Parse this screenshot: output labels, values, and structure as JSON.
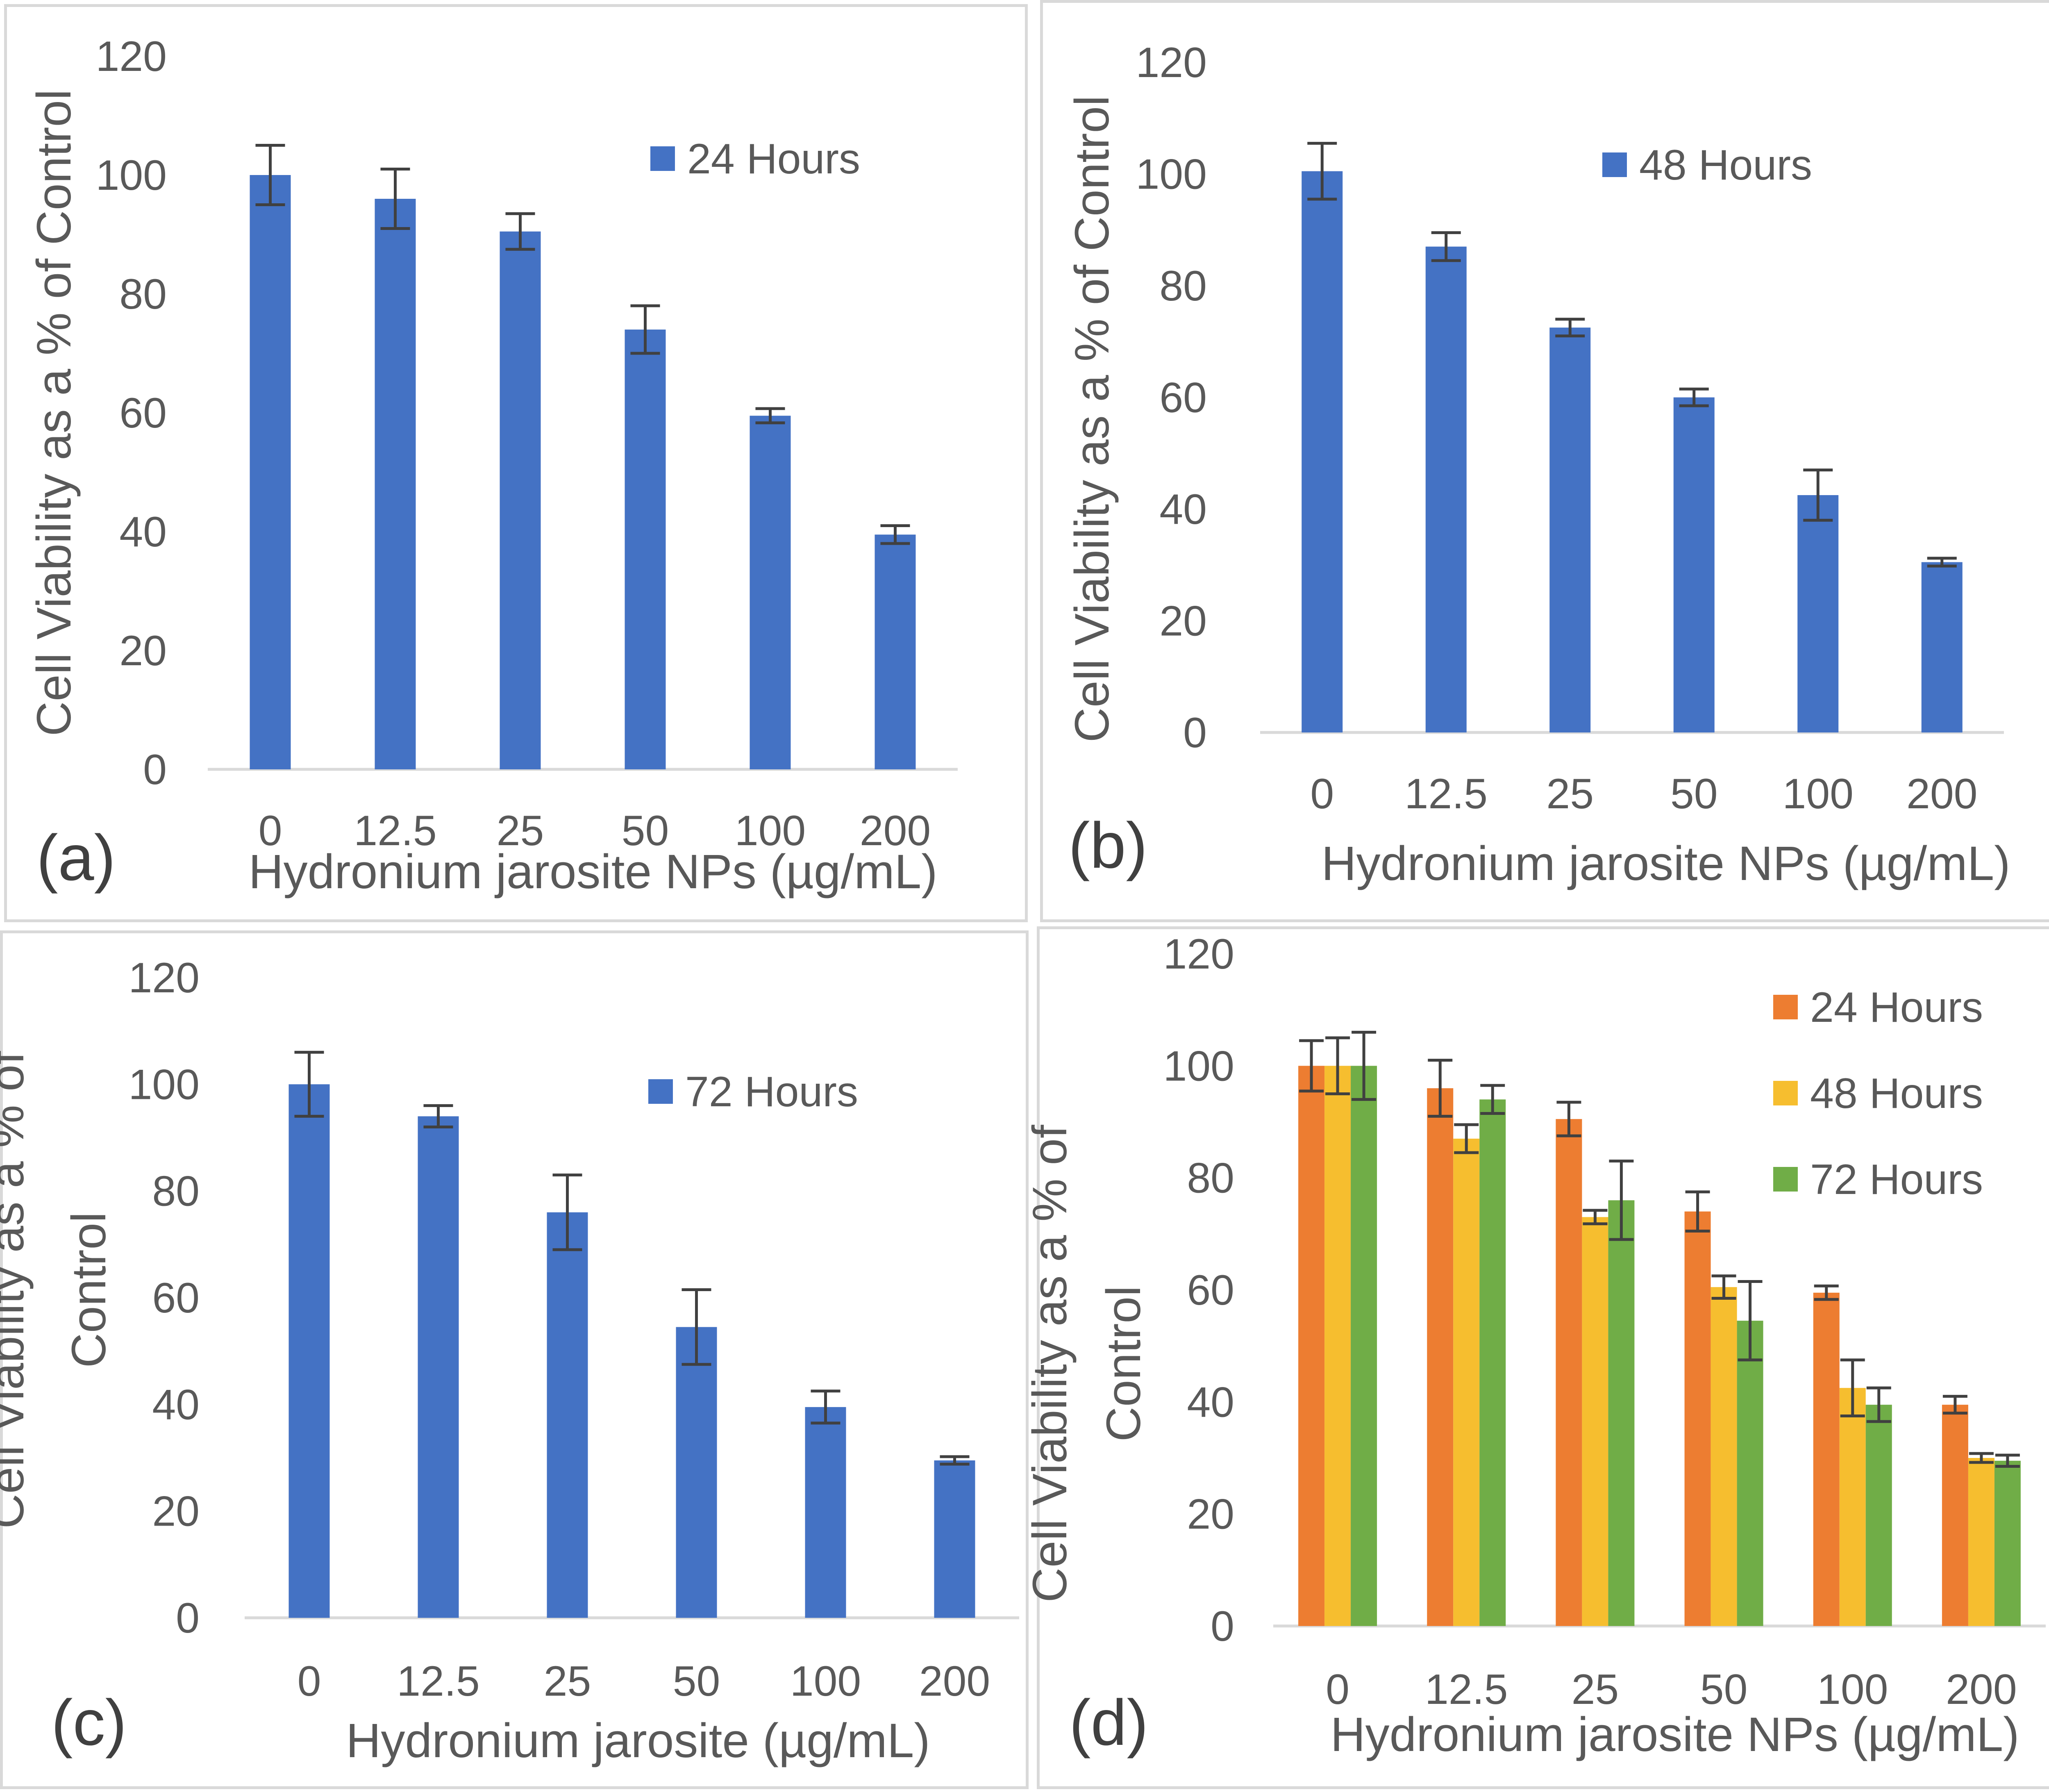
{
  "chart_data": [
    {
      "id": "a",
      "type": "bar",
      "panel_label": "(a)",
      "categories": [
        "0",
        "12.5",
        "25",
        "50",
        "100",
        "200"
      ],
      "series": [
        {
          "name": "24 Hours",
          "color": "#4472c4",
          "values": [
            100,
            96,
            90.5,
            74,
            59.5,
            39.5
          ],
          "errors": [
            5,
            5,
            3,
            4,
            1.2,
            1.5
          ]
        }
      ],
      "ylabel": [
        "Cell Viability as a % of Control"
      ],
      "xlabel": "Hydronium jarosite NPs (µg/mL)",
      "ylim": [
        0,
        120
      ],
      "yticks": [
        "0",
        "20",
        "40",
        "60",
        "80",
        "100",
        "120"
      ],
      "legend_position": "top-right"
    },
    {
      "id": "b",
      "type": "bar",
      "panel_label": "(b)",
      "categories": [
        "0",
        "12.5",
        "25",
        "50",
        "100",
        "200"
      ],
      "series": [
        {
          "name": "48 Hours",
          "color": "#4472c4",
          "values": [
            100.5,
            87,
            72.5,
            60,
            42.5,
            30.5
          ],
          "errors": [
            5,
            2.5,
            1.5,
            1.5,
            4.5,
            0.7
          ]
        }
      ],
      "ylabel": [
        "Cell Viability as a % of Control"
      ],
      "xlabel": "Hydronium jarosite NPs (µg/mL)",
      "ylim": [
        0,
        120
      ],
      "yticks": [
        "0",
        "20",
        "40",
        "60",
        "80",
        "100",
        "120"
      ],
      "legend_position": "top-right"
    },
    {
      "id": "c",
      "type": "bar",
      "panel_label": "(c)",
      "categories": [
        "0",
        "12.5",
        "25",
        "50",
        "100",
        "200"
      ],
      "series": [
        {
          "name": "72 Hours",
          "color": "#4472c4",
          "values": [
            100,
            94,
            76,
            54.5,
            39.5,
            29.5
          ],
          "errors": [
            6,
            2,
            7,
            7,
            3,
            0.7
          ]
        }
      ],
      "ylabel": [
        "Cell Viability as a % of",
        "Control"
      ],
      "xlabel": "Hydronium jarosite (µg/mL)",
      "ylim": [
        0,
        120
      ],
      "yticks": [
        "0",
        "20",
        "40",
        "60",
        "80",
        "100",
        "120"
      ],
      "legend_position": "top-right"
    },
    {
      "id": "d",
      "type": "bar",
      "panel_label": "(d)",
      "categories": [
        "0",
        "12.5",
        "25",
        "50",
        "100",
        "200"
      ],
      "series": [
        {
          "name": "24 Hours",
          "color": "#ed7d31",
          "values": [
            100,
            96,
            90.5,
            74,
            59.5,
            39.5
          ],
          "errors": [
            4.5,
            5,
            3,
            3.5,
            1.2,
            1.5
          ]
        },
        {
          "name": "48 Hours",
          "color": "#f6be2f",
          "values": [
            100,
            87,
            73,
            60.5,
            42.5,
            30
          ],
          "errors": [
            5,
            2.5,
            1.2,
            2,
            5,
            0.8
          ]
        },
        {
          "name": "72 Hours",
          "color": "#70ad47",
          "values": [
            100,
            94,
            76,
            54.5,
            39.5,
            29.5
          ],
          "errors": [
            6,
            2.5,
            7,
            7,
            3,
            1
          ]
        }
      ],
      "ylabel": [
        "Cell Viability as a % of",
        "Control"
      ],
      "xlabel": "Hydronium jarosite NPs (µg/mL)",
      "ylim": [
        0,
        120
      ],
      "yticks": [
        "0",
        "20",
        "40",
        "60",
        "80",
        "100",
        "120"
      ],
      "legend_position": "top-right"
    }
  ]
}
